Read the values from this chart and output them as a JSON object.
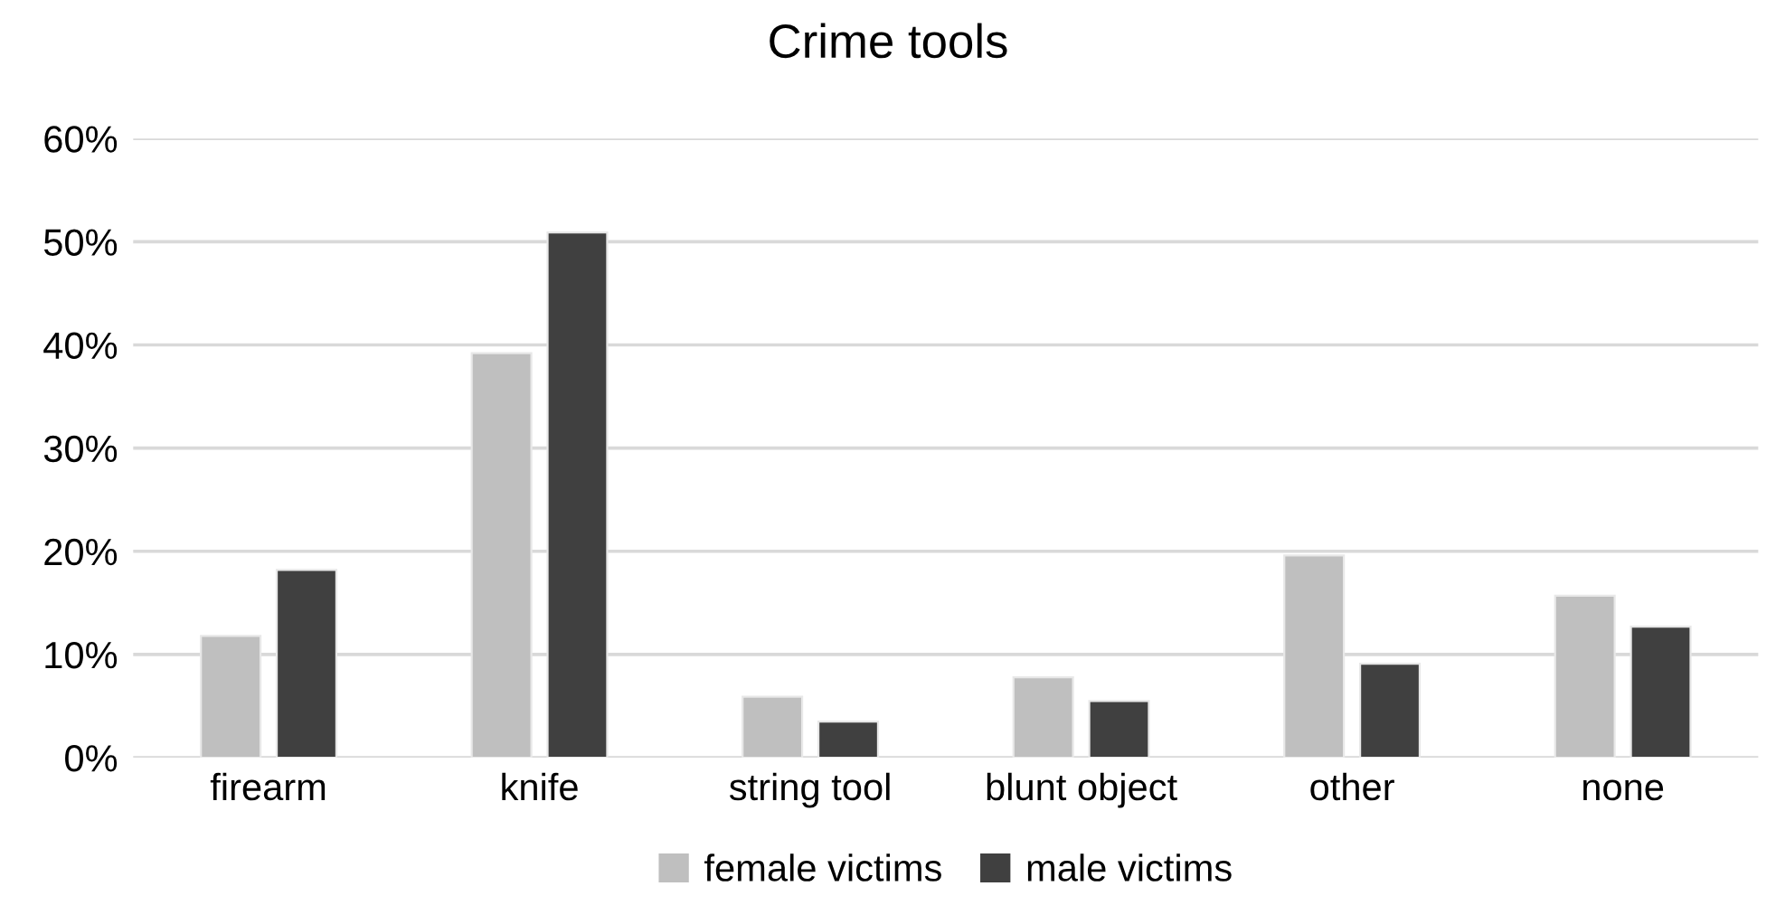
{
  "chart_data": {
    "type": "bar",
    "title": "Crime tools",
    "categories": [
      "firearm",
      "knife",
      "string tool",
      "blunt object",
      "other",
      "none"
    ],
    "series": [
      {
        "name": "female victims",
        "color": "#bfbfbf",
        "values": [
          11.8,
          39.2,
          5.9,
          7.8,
          19.6,
          15.7
        ]
      },
      {
        "name": "male victims",
        "color": "#404040",
        "values": [
          18.2,
          50.9,
          3.5,
          5.5,
          9.1,
          12.7
        ]
      }
    ],
    "ylim": [
      0,
      60
    ],
    "yticks": [
      {
        "value": 0,
        "label": "0%"
      },
      {
        "value": 10,
        "label": "10%"
      },
      {
        "value": 20,
        "label": "20%"
      },
      {
        "value": 30,
        "label": "30%"
      },
      {
        "value": 40,
        "label": "40%"
      },
      {
        "value": 50,
        "label": "50%"
      },
      {
        "value": 60,
        "label": "60%"
      }
    ],
    "grid": "y",
    "legend": "bottom"
  }
}
